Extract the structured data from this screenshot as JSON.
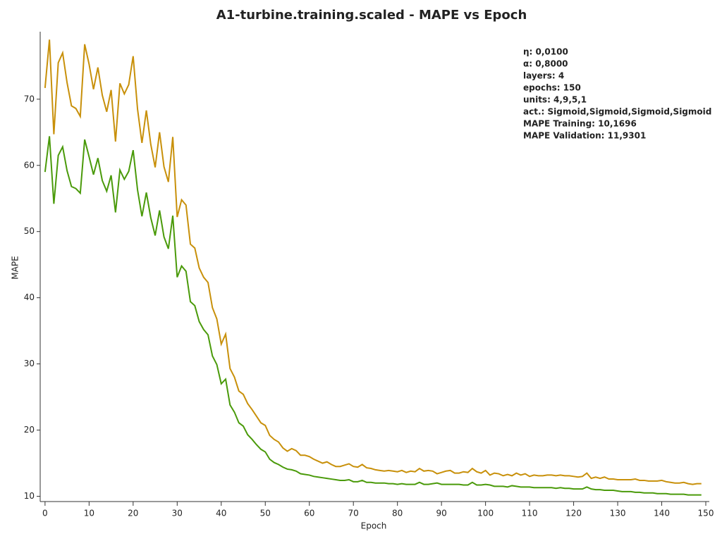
{
  "chart_data": {
    "type": "line",
    "title": "A1-turbine.training.scaled - MAPE vs Epoch",
    "xlabel": "Epoch",
    "ylabel": "MAPE",
    "annotations": [
      "η: 0,0100",
      "α: 0,8000",
      "layers: 4",
      "epochs: 150",
      "units: 4,9,5,1",
      "act.: Sigmoid,Sigmoid,Sigmoid,Sigmoid",
      "MAPE Training: 10,1696",
      "MAPE Validation: 11,9301"
    ],
    "x": [
      0,
      1,
      2,
      3,
      4,
      5,
      6,
      7,
      8,
      9,
      10,
      11,
      12,
      13,
      14,
      15,
      16,
      17,
      18,
      19,
      20,
      21,
      22,
      23,
      24,
      25,
      26,
      27,
      28,
      29,
      30,
      31,
      32,
      33,
      34,
      35,
      36,
      37,
      38,
      39,
      40,
      41,
      42,
      43,
      44,
      45,
      46,
      47,
      48,
      49,
      50,
      51,
      52,
      53,
      54,
      55,
      56,
      57,
      58,
      59,
      60,
      61,
      62,
      63,
      64,
      65,
      66,
      67,
      68,
      69,
      70,
      71,
      72,
      73,
      74,
      75,
      76,
      77,
      78,
      79,
      80,
      81,
      82,
      83,
      84,
      85,
      86,
      87,
      88,
      89,
      90,
      91,
      92,
      93,
      94,
      95,
      96,
      97,
      98,
      99,
      100,
      101,
      102,
      103,
      104,
      105,
      106,
      107,
      108,
      109,
      110,
      111,
      112,
      113,
      114,
      115,
      116,
      117,
      118,
      119,
      120,
      121,
      122,
      123,
      124,
      125,
      126,
      127,
      128,
      129,
      130,
      131,
      132,
      133,
      134,
      135,
      136,
      137,
      138,
      139,
      140,
      141,
      142,
      143,
      144,
      145,
      146,
      147,
      148,
      149
    ],
    "series": [
      {
        "color": "#c8900a",
        "values": [
          71.7,
          79,
          64.7,
          75.5,
          77,
          72.5,
          69,
          68.6,
          67.4,
          78.3,
          75.3,
          71.5,
          74.8,
          70.6,
          68.1,
          71.4,
          63.6,
          72.4,
          70.8,
          72.2,
          76.5,
          68.5,
          63.4,
          68.3,
          63.2,
          59.7,
          65,
          59.8,
          57.5,
          64.3,
          52.2,
          54.8,
          54,
          48.1,
          47.5,
          44.5,
          43.1,
          42.3,
          38.5,
          36.8,
          33,
          34.5,
          29.3,
          28,
          25.9,
          25.4,
          24,
          23.1,
          22.1,
          21.1,
          20.7,
          19.2,
          18.6,
          18.2,
          17.3,
          16.8,
          17.2,
          16.9,
          16.2,
          16.2,
          16,
          15.6,
          15.3,
          15,
          15.2,
          14.8,
          14.5,
          14.5,
          14.7,
          14.9,
          14.5,
          14.4,
          14.8,
          14.3,
          14.2,
          14,
          13.9,
          13.8,
          13.9,
          13.8,
          13.7,
          13.9,
          13.6,
          13.8,
          13.7,
          14.2,
          13.8,
          13.9,
          13.8,
          13.4,
          13.6,
          13.8,
          13.9,
          13.5,
          13.5,
          13.7,
          13.6,
          14.2,
          13.7,
          13.5,
          13.9,
          13.2,
          13.5,
          13.4,
          13.1,
          13.3,
          13.1,
          13.5,
          13.2,
          13.4,
          13,
          13.2,
          13.1,
          13.1,
          13.2,
          13.2,
          13.1,
          13.2,
          13.1,
          13.1,
          13,
          12.9,
          13,
          13.5,
          12.7,
          12.9,
          12.7,
          12.9,
          12.6,
          12.6,
          12.5,
          12.5,
          12.5,
          12.5,
          12.6,
          12.4,
          12.4,
          12.3,
          12.3,
          12.3,
          12.4,
          12.2,
          12.1,
          12,
          12,
          12.1,
          11.9,
          11.8,
          11.9,
          11.9
        ]
      },
      {
        "color": "#4a9a0a",
        "values": [
          59,
          64.4,
          54.2,
          61.5,
          62.8,
          59.2,
          56.8,
          56.5,
          55.8,
          63.9,
          61.3,
          58.6,
          61.1,
          57.7,
          56.1,
          58.5,
          52.9,
          59.3,
          57.9,
          59.1,
          62.3,
          56.3,
          52.3,
          55.9,
          52.1,
          49.4,
          53.2,
          49.2,
          47.4,
          52.4,
          43.1,
          44.8,
          44,
          39.4,
          38.8,
          36.4,
          35.2,
          34.4,
          31.2,
          29.9,
          27,
          27.7,
          23.8,
          22.7,
          21.1,
          20.6,
          19.3,
          18.6,
          17.8,
          17.1,
          16.7,
          15.6,
          15.1,
          14.8,
          14.4,
          14.1,
          14,
          13.8,
          13.4,
          13.3,
          13.2,
          13,
          12.9,
          12.8,
          12.7,
          12.6,
          12.5,
          12.4,
          12.4,
          12.5,
          12.2,
          12.2,
          12.4,
          12.1,
          12.1,
          12,
          12,
          12,
          11.9,
          11.9,
          11.8,
          11.9,
          11.8,
          11.8,
          11.8,
          12.1,
          11.8,
          11.8,
          11.9,
          12,
          11.8,
          11.8,
          11.8,
          11.8,
          11.8,
          11.7,
          11.7,
          12.1,
          11.7,
          11.7,
          11.8,
          11.7,
          11.5,
          11.5,
          11.5,
          11.4,
          11.6,
          11.5,
          11.4,
          11.4,
          11.4,
          11.3,
          11.3,
          11.3,
          11.3,
          11.3,
          11.2,
          11.3,
          11.2,
          11.2,
          11.1,
          11.1,
          11.1,
          11.4,
          11.1,
          11,
          11,
          10.9,
          10.9,
          10.9,
          10.8,
          10.7,
          10.7,
          10.7,
          10.6,
          10.6,
          10.5,
          10.5,
          10.5,
          10.4,
          10.4,
          10.4,
          10.3,
          10.3,
          10.3,
          10.3,
          10.2,
          10.2,
          10.2,
          10.2
        ]
      }
    ],
    "xlim": [
      -1.1,
      150.8
    ],
    "ylim": [
      9.2,
      80.2
    ],
    "xticks": [
      0,
      10,
      20,
      30,
      40,
      50,
      60,
      70,
      80,
      90,
      100,
      110,
      120,
      130,
      140,
      150
    ],
    "yticks": [
      10,
      20,
      30,
      40,
      50,
      60,
      70
    ]
  }
}
